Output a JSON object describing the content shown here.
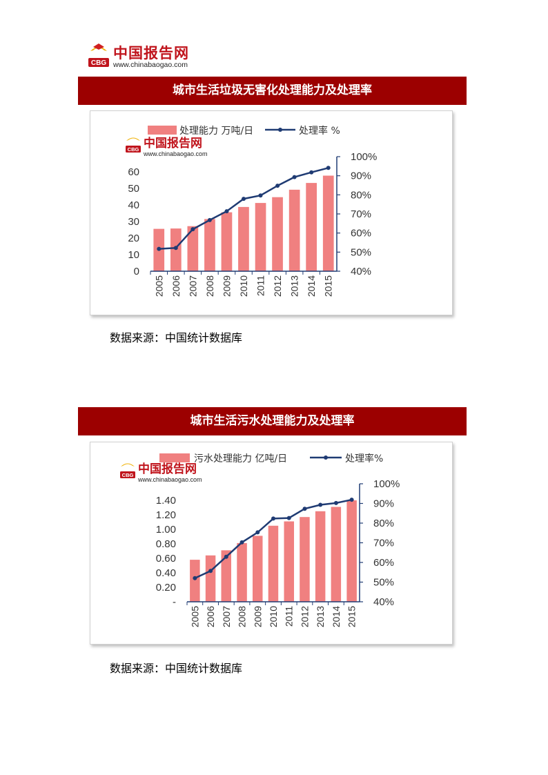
{
  "header": {
    "logo_name": "中国报告网",
    "logo_url": "www.chinabaogao.com",
    "logo_mark": "CBG"
  },
  "colors": {
    "title_bar": "#9c0000",
    "bar": "#f08080",
    "line": "#1f3b73",
    "brand_red": "#c0141c"
  },
  "sections": [
    {
      "title": "城市生活垃圾无害化处理能力及处理率",
      "source": "数据来源：中国统计数据库",
      "chart_data": {
        "type": "bar+line",
        "categories": [
          "2005",
          "2006",
          "2007",
          "2008",
          "2009",
          "2010",
          "2011",
          "2012",
          "2013",
          "2014",
          "2015"
        ],
        "series": [
          {
            "name": "处理能力 万吨/日",
            "type": "bar",
            "axis": "left",
            "values": [
              25.6,
              25.8,
              27.2,
              31.5,
              35.6,
              38.8,
              41.2,
              44.7,
              49.2,
              53.3,
              57.7
            ]
          },
          {
            "name": "处理率 %",
            "type": "line",
            "axis": "right",
            "values": [
              51.7,
              52.2,
              62.0,
              66.8,
              71.4,
              77.9,
              79.7,
              84.8,
              89.3,
              91.8,
              94.1
            ]
          }
        ],
        "left_axis": {
          "ticks": [
            "0",
            "10",
            "20",
            "30",
            "40",
            "50",
            "60"
          ],
          "min": 0,
          "max": 70
        },
        "right_axis": {
          "ticks": [
            "40%",
            "50%",
            "60%",
            "70%",
            "80%",
            "90%",
            "100%"
          ],
          "min": 40,
          "max": 100
        },
        "legend_position": "top"
      }
    },
    {
      "title": "城市生活污水处理能力及处理率",
      "source": "数据来源：中国统计数据库",
      "chart_data": {
        "type": "bar+line",
        "categories": [
          "2005",
          "2006",
          "2007",
          "2008",
          "2009",
          "2010",
          "2011",
          "2012",
          "2013",
          "2014",
          "2015"
        ],
        "series": [
          {
            "name": "污水处理能力 亿吨/日",
            "type": "bar",
            "axis": "left",
            "values": [
              0.58,
              0.64,
              0.71,
              0.81,
              0.91,
              1.05,
              1.11,
              1.17,
              1.25,
              1.31,
              1.4
            ]
          },
          {
            "name": "处理率%",
            "type": "line",
            "axis": "right",
            "values": [
              52.0,
              55.7,
              62.9,
              70.2,
              75.3,
              82.3,
              82.6,
              87.3,
              89.3,
              90.2,
              91.9
            ]
          }
        ],
        "left_axis": {
          "ticks": [
            "-",
            "0.20",
            "0.40",
            "0.60",
            "0.80",
            "1.00",
            "1.20",
            "1.40"
          ],
          "min": 0,
          "max": 1.6
        },
        "right_axis": {
          "ticks": [
            "40%",
            "50%",
            "60%",
            "70%",
            "80%",
            "90%",
            "100%"
          ],
          "min": 40,
          "max": 100
        },
        "legend_position": "top"
      }
    }
  ]
}
